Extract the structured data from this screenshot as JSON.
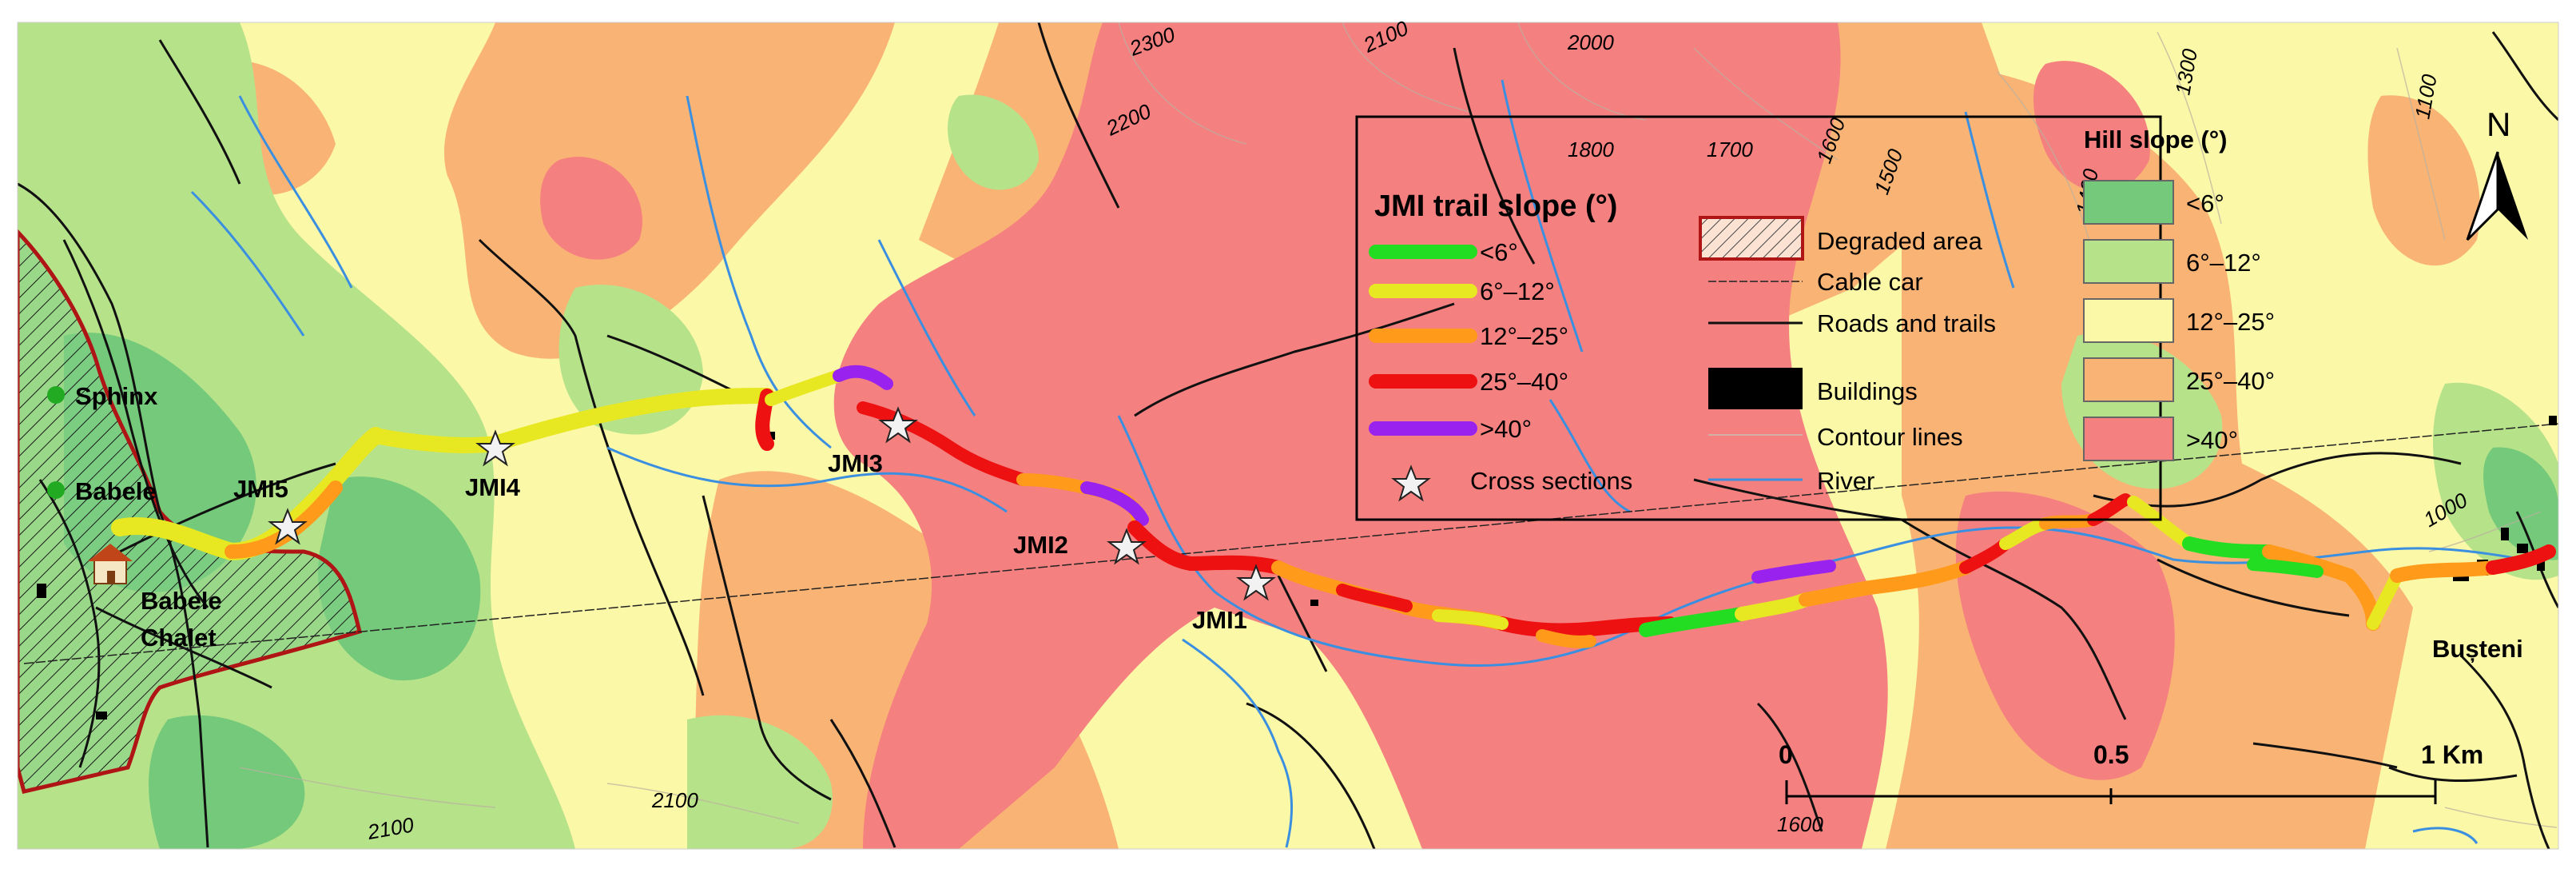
{
  "places": {
    "sphinx": "Sphinx",
    "babele": "Babele",
    "chalet_line1": "Babele",
    "chalet_line2": "Chalet",
    "busteni": "Bușteni"
  },
  "cross_sections": {
    "jmi1": "JMI1",
    "jmi2": "JMI2",
    "jmi3": "JMI3",
    "jmi4": "JMI4",
    "jmi5": "JMI5"
  },
  "contours": {
    "c2300": "2300",
    "c2200": "2200",
    "c2100_top": "2100",
    "c2000": "2000",
    "c1800": "1800",
    "c1700": "1700",
    "c1600_top": "1600",
    "c1500": "1500",
    "c1400": "1400",
    "c1300": "1300",
    "c1100": "1100",
    "c1000": "1000",
    "c2100_bottom": "2100",
    "c2100_bottom2": "2100",
    "c1600_bottom": "1600"
  },
  "legend": {
    "trail_title": "JMI trail slope (°)",
    "trail_classes": [
      {
        "label": "<6°",
        "color": "#22dd22"
      },
      {
        "label": "6°–12°",
        "color": "#e8e822"
      },
      {
        "label": "12°–25°",
        "color": "#ff9a1a"
      },
      {
        "label": "25°–40°",
        "color": "#ee1111"
      },
      {
        "label": ">40°",
        "color": "#9922ee"
      }
    ],
    "cross_sections": "Cross sections",
    "degraded": "Degraded area",
    "cable_car": "Cable car",
    "roads": "Roads and trails",
    "buildings": "Buildings",
    "contours": "Contour lines",
    "river": "River",
    "hill_title": "Hill slope (°)",
    "hill_classes": [
      {
        "label": "<6°",
        "color": "#74c97a"
      },
      {
        "label": "6°–12°",
        "color": "#b6e28a"
      },
      {
        "label": "12°–25°",
        "color": "#fbf8a8"
      },
      {
        "label": "25°–40°",
        "color": "#f9b475"
      },
      {
        "label": ">40°",
        "color": "#f58080"
      }
    ]
  },
  "north": "N",
  "scale": {
    "t0": "0",
    "t1": "0.5",
    "t2": "1 Km"
  },
  "colors": {
    "trail_outline": "#ffffff",
    "river": "#3b8fe0",
    "degraded_border": "#b01515"
  }
}
